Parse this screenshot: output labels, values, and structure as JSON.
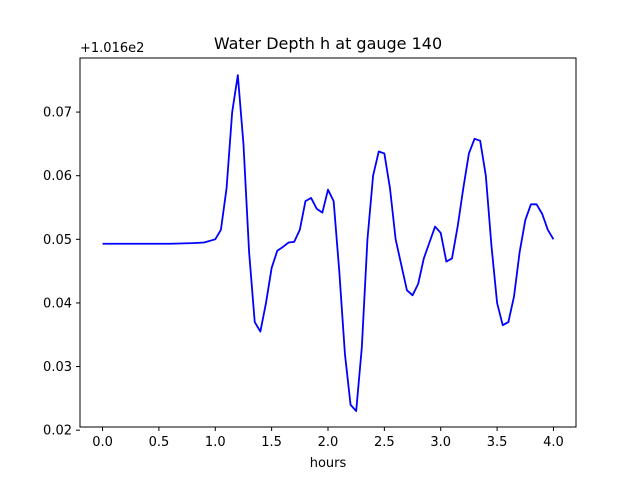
{
  "chart_data": {
    "type": "line",
    "title": "Water Depth h at gauge 140",
    "xlabel": "hours",
    "ylabel": "",
    "y_offset_text": "+1.016e2",
    "xlim": [
      -0.2,
      4.2
    ],
    "ylim": [
      0.0205,
      0.0785
    ],
    "x_ticks": [
      0.0,
      0.5,
      1.0,
      1.5,
      2.0,
      2.5,
      3.0,
      3.5,
      4.0
    ],
    "x_tick_labels": [
      "0.0",
      "0.5",
      "1.0",
      "1.5",
      "2.0",
      "2.5",
      "3.0",
      "3.5",
      "4.0"
    ],
    "y_ticks": [
      0.02,
      0.03,
      0.04,
      0.05,
      0.06,
      0.07
    ],
    "y_tick_labels": [
      "0.02",
      "0.03",
      "0.04",
      "0.05",
      "0.06",
      "0.07"
    ],
    "grid": false,
    "series": [
      {
        "color": "#0000ff",
        "x": [
          0.0,
          0.2,
          0.4,
          0.6,
          0.8,
          0.9,
          1.0,
          1.05,
          1.1,
          1.15,
          1.2,
          1.25,
          1.3,
          1.35,
          1.4,
          1.45,
          1.5,
          1.55,
          1.6,
          1.65,
          1.7,
          1.75,
          1.8,
          1.85,
          1.9,
          1.95,
          2.0,
          2.05,
          2.1,
          2.15,
          2.2,
          2.25,
          2.3,
          2.35,
          2.4,
          2.45,
          2.5,
          2.55,
          2.6,
          2.65,
          2.7,
          2.75,
          2.8,
          2.85,
          2.9,
          2.95,
          3.0,
          3.05,
          3.1,
          3.15,
          3.2,
          3.25,
          3.3,
          3.35,
          3.4,
          3.45,
          3.5,
          3.55,
          3.6,
          3.65,
          3.7,
          3.75,
          3.8,
          3.85,
          3.9,
          3.95,
          4.0
        ],
        "y": [
          0.0493,
          0.0493,
          0.0493,
          0.0493,
          0.0494,
          0.0495,
          0.05,
          0.0515,
          0.058,
          0.07,
          0.0758,
          0.065,
          0.048,
          0.037,
          0.0355,
          0.04,
          0.0455,
          0.0482,
          0.0488,
          0.0495,
          0.0496,
          0.0515,
          0.056,
          0.0565,
          0.0548,
          0.0542,
          0.0578,
          0.056,
          0.045,
          0.032,
          0.024,
          0.023,
          0.033,
          0.05,
          0.06,
          0.0638,
          0.0635,
          0.058,
          0.05,
          0.046,
          0.042,
          0.0412,
          0.043,
          0.047,
          0.0495,
          0.052,
          0.051,
          0.0465,
          0.047,
          0.052,
          0.058,
          0.0635,
          0.0658,
          0.0655,
          0.06,
          0.049,
          0.04,
          0.0365,
          0.037,
          0.041,
          0.048,
          0.053,
          0.0555,
          0.0555,
          0.054,
          0.0515,
          0.05
        ]
      }
    ]
  }
}
